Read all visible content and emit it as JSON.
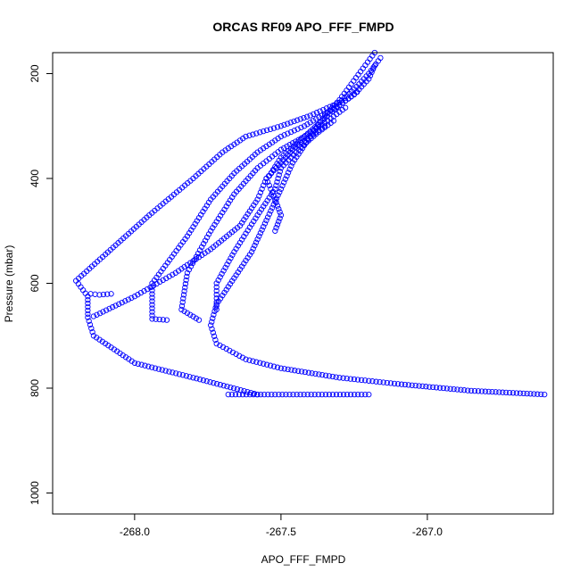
{
  "chart_data": {
    "type": "scatter",
    "title": "ORCAS RF09 APO_FFF_FMPD",
    "xlabel": "APO_FFF_FMPD",
    "ylabel": "Pressure (mbar)",
    "xlim": [
      -268.28,
      -266.57
    ],
    "ylim": [
      1040,
      160
    ],
    "y_reversed": true,
    "x_ticks": [
      -268.0,
      -267.5,
      -267.0
    ],
    "x_tick_labels": [
      "-268.0",
      "-267.5",
      "-267.0"
    ],
    "y_ticks": [
      200,
      400,
      600,
      800,
      1000
    ],
    "y_tick_labels": [
      "200",
      "400",
      "600",
      "800",
      "1000"
    ],
    "marker": "open-circle",
    "point_color": "#0000ff",
    "grid": false,
    "segments": [
      [
        [
          -266.6,
          812
        ],
        [
          -266.85,
          805
        ],
        [
          -267.1,
          792
        ],
        [
          -267.3,
          780
        ],
        [
          -267.5,
          762
        ],
        [
          -267.62,
          745
        ],
        [
          -267.72,
          715
        ],
        [
          -267.74,
          680
        ],
        [
          -267.72,
          640
        ],
        [
          -267.66,
          590
        ],
        [
          -267.6,
          540
        ],
        [
          -267.55,
          480
        ],
        [
          -267.5,
          420
        ],
        [
          -267.46,
          370
        ],
        [
          -267.4,
          320
        ],
        [
          -267.35,
          280
        ],
        [
          -267.3,
          250
        ],
        [
          -267.26,
          220
        ],
        [
          -267.22,
          190
        ],
        [
          -267.18,
          160
        ]
      ],
      [
        [
          -267.68,
          812
        ],
        [
          -267.2,
          812
        ]
      ],
      [
        [
          -267.58,
          812
        ],
        [
          -267.8,
          780
        ],
        [
          -268.0,
          752
        ],
        [
          -268.14,
          700
        ],
        [
          -268.16,
          665
        ],
        [
          -268.16,
          625
        ],
        [
          -268.2,
          595
        ],
        [
          -268.1,
          545
        ],
        [
          -267.95,
          470
        ],
        [
          -267.8,
          400
        ],
        [
          -267.7,
          350
        ],
        [
          -267.62,
          320
        ],
        [
          -267.5,
          300
        ],
        [
          -267.4,
          280
        ],
        [
          -267.3,
          255
        ],
        [
          -267.25,
          230
        ],
        [
          -267.2,
          200
        ],
        [
          -267.16,
          170
        ]
      ],
      [
        [
          -268.15,
          620
        ],
        [
          -268.12,
          622
        ],
        [
          -268.08,
          620
        ]
      ],
      [
        [
          -267.89,
          670
        ],
        [
          -267.94,
          668
        ],
        [
          -267.94,
          600
        ],
        [
          -267.82,
          510
        ],
        [
          -267.74,
          440
        ],
        [
          -267.66,
          390
        ],
        [
          -267.58,
          350
        ],
        [
          -267.5,
          320
        ],
        [
          -267.42,
          300
        ],
        [
          -267.36,
          280
        ],
        [
          -267.3,
          260
        ],
        [
          -267.24,
          235
        ]
      ],
      [
        [
          -267.78,
          670
        ],
        [
          -267.84,
          650
        ],
        [
          -267.82,
          580
        ],
        [
          -267.74,
          500
        ],
        [
          -267.66,
          430
        ],
        [
          -267.58,
          380
        ],
        [
          -267.5,
          345
        ],
        [
          -267.42,
          320
        ],
        [
          -267.34,
          290
        ],
        [
          -267.28,
          265
        ]
      ],
      [
        [
          -267.72,
          650
        ],
        [
          -267.72,
          600
        ],
        [
          -267.66,
          540
        ],
        [
          -267.58,
          470
        ],
        [
          -267.52,
          420
        ],
        [
          -267.5,
          380
        ],
        [
          -267.44,
          345
        ],
        [
          -267.38,
          315
        ],
        [
          -267.32,
          290
        ]
      ],
      [
        [
          -268.14,
          663
        ],
        [
          -268.0,
          625
        ],
        [
          -267.86,
          580
        ],
        [
          -267.74,
          535
        ],
        [
          -267.64,
          490
        ],
        [
          -267.58,
          440
        ],
        [
          -267.55,
          400
        ],
        [
          -267.5,
          370
        ],
        [
          -267.46,
          345
        ],
        [
          -267.4,
          320
        ],
        [
          -267.35,
          300
        ]
      ],
      [
        [
          -267.54,
          395
        ],
        [
          -267.5,
          360
        ],
        [
          -267.45,
          335
        ],
        [
          -267.4,
          310
        ],
        [
          -267.35,
          285
        ],
        [
          -267.3,
          260
        ],
        [
          -267.25,
          240
        ],
        [
          -267.2,
          210
        ],
        [
          -267.18,
          185
        ]
      ],
      [
        [
          -267.55,
          400
        ],
        [
          -267.52,
          440
        ],
        [
          -267.5,
          470
        ],
        [
          -267.52,
          500
        ]
      ]
    ]
  }
}
